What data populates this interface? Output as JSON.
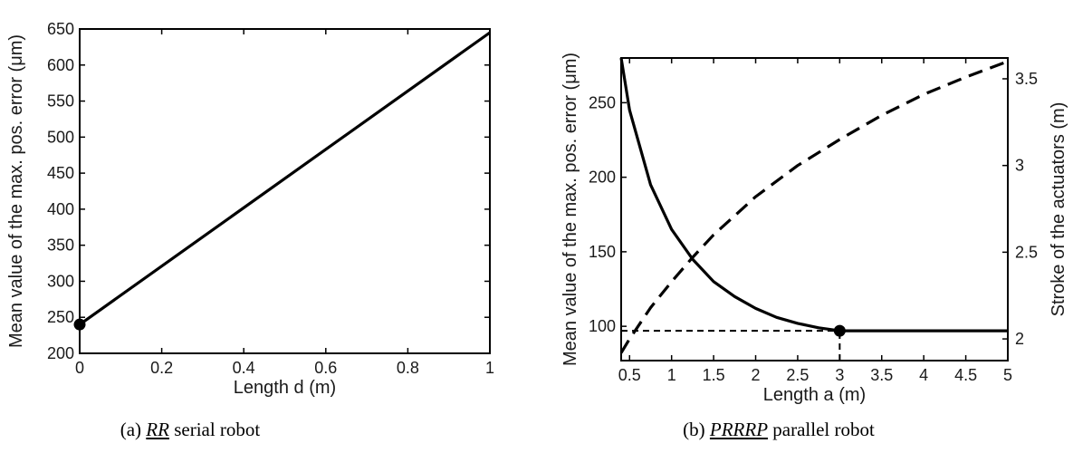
{
  "chart_data": [
    {
      "type": "line",
      "caption": {
        "prefix": "(a) ",
        "robot": "RR",
        "suffix": " serial robot"
      },
      "xlabel": "Length d (m)",
      "ylabel": "Mean value of the max. pos. error (μm)",
      "xlim": [
        0,
        1
      ],
      "ylim": [
        200,
        650
      ],
      "xticks": [
        "0",
        "0.2",
        "0.4",
        "0.6",
        "0.8",
        "1"
      ],
      "yticks": [
        "200",
        "250",
        "300",
        "350",
        "400",
        "450",
        "500",
        "550",
        "600",
        "650"
      ],
      "grid": false,
      "series": [
        {
          "style": "solid",
          "axis": "left",
          "x": [
            0,
            1
          ],
          "y": [
            240,
            645
          ]
        }
      ],
      "markers": [
        {
          "x": 0,
          "y": 240
        }
      ]
    },
    {
      "type": "line",
      "caption": {
        "prefix": "(b) ",
        "robot": "PRRRP",
        "suffix": " parallel robot"
      },
      "xlabel": "Length a (m)",
      "ylabel": "Mean value of the max. pos. error (μm)",
      "y2label": "Stroke of the actuators (m)",
      "xlim": [
        0.4,
        5
      ],
      "ylim": [
        77,
        280
      ],
      "y2lim": [
        1.875,
        3.62
      ],
      "xticks": [
        "0.5",
        "1",
        "1.5",
        "2",
        "2.5",
        "3",
        "3.5",
        "4",
        "4.5",
        "5"
      ],
      "yticks": [
        "100",
        "150",
        "200",
        "250"
      ],
      "y2ticks": [
        "2",
        "2.5",
        "3",
        "3.5"
      ],
      "grid": false,
      "series": [
        {
          "style": "solid",
          "axis": "left",
          "x": [
            0.4,
            0.5,
            0.75,
            1.0,
            1.25,
            1.5,
            1.75,
            2.0,
            2.25,
            2.5,
            2.75,
            3.0,
            3.5,
            4.0,
            4.5,
            5.0
          ],
          "y": [
            280,
            245,
            195,
            165,
            145,
            130,
            120,
            112,
            106,
            102,
            99,
            97,
            97,
            97,
            97,
            97
          ]
        },
        {
          "style": "dashed",
          "axis": "right",
          "x": [
            0.4,
            0.5,
            0.75,
            1.0,
            1.25,
            1.5,
            1.75,
            2.0,
            2.5,
            3.0,
            3.5,
            4.0,
            4.5,
            5.0
          ],
          "y": [
            1.92,
            2.0,
            2.18,
            2.33,
            2.47,
            2.6,
            2.71,
            2.82,
            3.0,
            3.15,
            3.29,
            3.41,
            3.51,
            3.6
          ]
        }
      ],
      "markers": [
        {
          "x": 3,
          "y": 97
        }
      ],
      "reference_lines": [
        {
          "orientation": "horizontal",
          "y": 97,
          "x_from": 0.4,
          "x_to": 3
        },
        {
          "orientation": "vertical",
          "x": 3,
          "y_from": 77,
          "y_to": 97
        }
      ]
    }
  ]
}
